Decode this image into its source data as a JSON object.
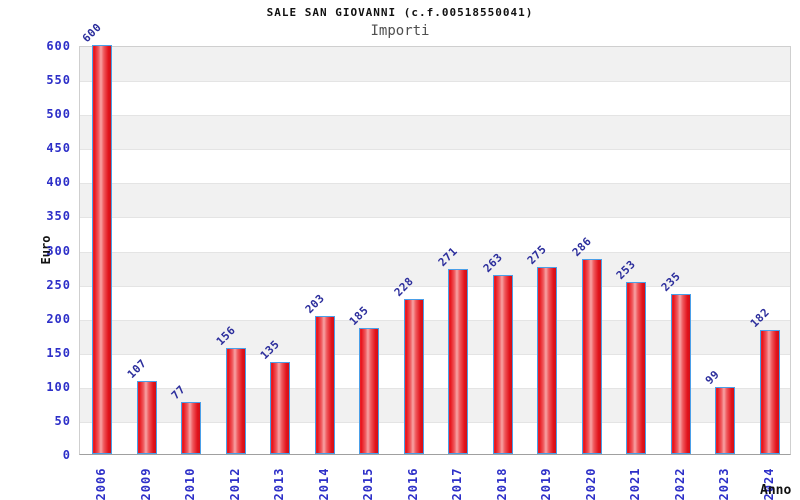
{
  "chart_data": {
    "type": "bar",
    "title": "SALE SAN GIOVANNI (c.f.00518550041)",
    "subtitle": "Importi",
    "xlabel": "Anno",
    "ylabel": "Euro",
    "categories": [
      "2006",
      "2009",
      "2010",
      "2012",
      "2013",
      "2014",
      "2015",
      "2016",
      "2017",
      "2018",
      "2019",
      "2020",
      "2021",
      "2022",
      "2023",
      "2024"
    ],
    "values": [
      600,
      107,
      77,
      156,
      135,
      203,
      185,
      228,
      271,
      263,
      275,
      286,
      253,
      235,
      99,
      182
    ],
    "ylim": [
      0,
      600
    ],
    "ytick_step": 50,
    "grid": true,
    "legend": "none",
    "colors": {
      "bar_red": "#e8141c",
      "bar_highlight": "#f7a3a5",
      "bar_border": "#4a9fe8",
      "tick_label_blue": "#2d2fc8",
      "value_label_blue": "#2b2d9c",
      "band_gray": "#f1f1f1",
      "gridline": "#e4e4e4",
      "plot_border": "#cfcfcf",
      "axis_line": "#a0a0a0",
      "title_color": "#111111",
      "subtitle_color": "#4f4f4f"
    }
  }
}
